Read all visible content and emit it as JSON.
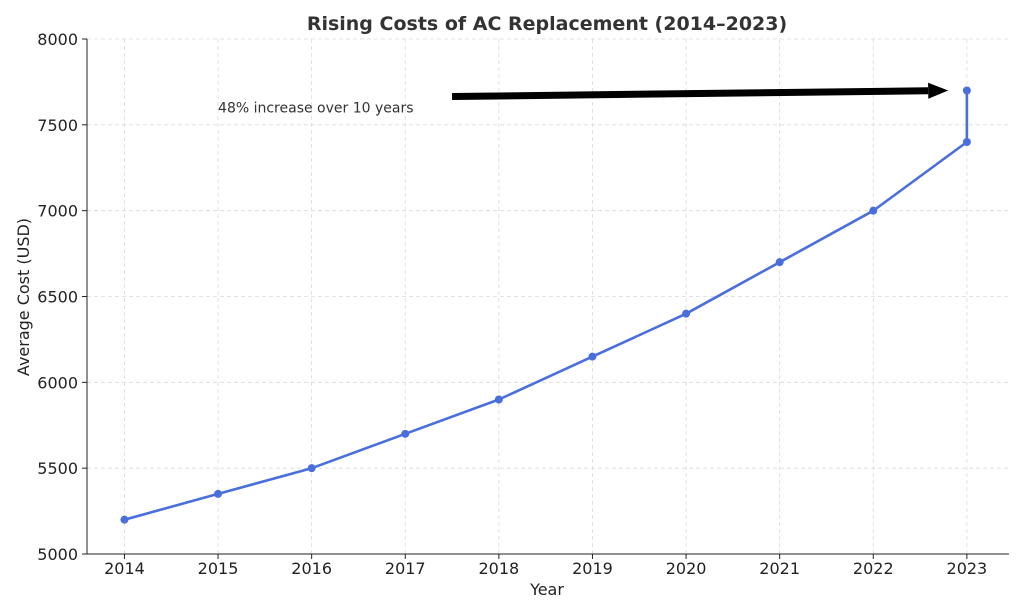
{
  "chart_data": {
    "type": "line",
    "title": "Rising Costs of AC Replacement (2014–2023)",
    "xlabel": "Year",
    "ylabel": "Average Cost (USD)",
    "x": [
      2014,
      2015,
      2016,
      2017,
      2018,
      2019,
      2020,
      2021,
      2022,
      2023,
      2023
    ],
    "series": [
      {
        "values": [
          5200,
          5350,
          5500,
          5700,
          5900,
          6150,
          6400,
          6700,
          7000,
          7400,
          7700
        ],
        "color": "#4a6fdc"
      }
    ],
    "xlim": [
      2013.6,
      2023.45
    ],
    "ylim": [
      5000,
      8000
    ],
    "xticks": [
      2014,
      2015,
      2016,
      2017,
      2018,
      2019,
      2020,
      2021,
      2022,
      2023
    ],
    "yticks": [
      5000,
      5500,
      6000,
      6500,
      7000,
      7500,
      8000
    ],
    "grid": true,
    "annotation": {
      "text": "48% increase over 10 years",
      "text_x": 2015,
      "text_y": 7600,
      "arrow_from": [
        2017.5,
        7665
      ],
      "arrow_to": [
        2022.8,
        7700
      ],
      "arrow_color": "#000000"
    }
  }
}
